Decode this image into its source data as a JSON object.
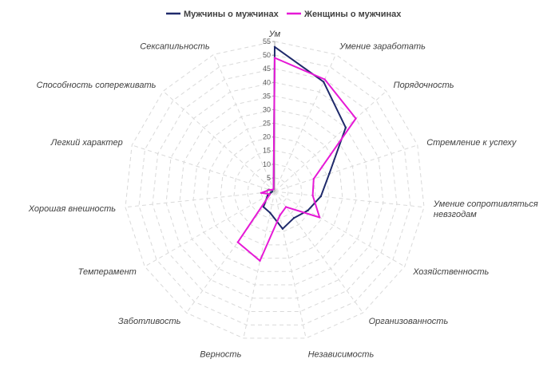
{
  "chart_data": {
    "type": "radar",
    "title": "",
    "categories": [
      "Ум",
      "Умение заработать",
      "Порядочность",
      "Стремление к успеху",
      "Умение сопротивляться невзгодам",
      "Хозяйственность",
      "Организованность",
      "Независимость",
      "Верность",
      "Заботливость",
      "Темперамент",
      "Хорошая внешность",
      "Легкий характер",
      "Способность сопереживать",
      "Сексапильность"
    ],
    "ticks": [
      0,
      5,
      10,
      15,
      20,
      25,
      30,
      35,
      40,
      45,
      50,
      55
    ],
    "ylim": [
      0,
      55
    ],
    "grid": true,
    "legend_position": "top",
    "series": [
      {
        "name": "Мужчины о мужчинах",
        "color": "#1f2a6b",
        "values": [
          53,
          44,
          35,
          21,
          17,
          14,
          12,
          14,
          8,
          7,
          3,
          1,
          1,
          1,
          1
        ]
      },
      {
        "name": "Женщины о мужчинах",
        "color": "#e619d6",
        "values": [
          49,
          45,
          40,
          15,
          14,
          19,
          7,
          9,
          26,
          23,
          2,
          5,
          2,
          1,
          1
        ]
      }
    ]
  }
}
